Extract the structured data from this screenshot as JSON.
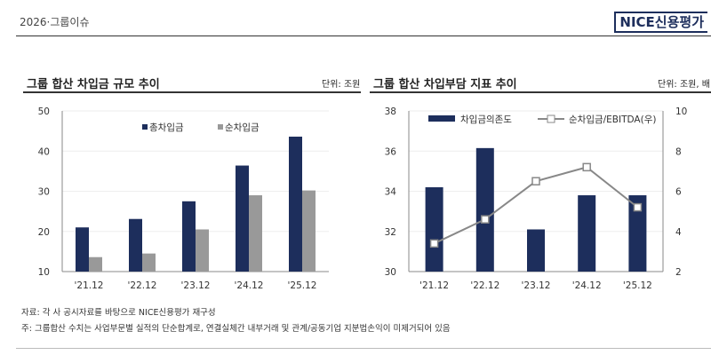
{
  "header": {
    "section": "2026·그룹이슈",
    "logo": "NICE신용평가"
  },
  "chart_data": [
    {
      "type": "bar",
      "title": "그룹 합산 차입금 규모 추이",
      "unit": "단위: 조원",
      "categories": [
        "'21.12",
        "'22.12",
        "'23.12",
        "'24.12",
        "'25.12"
      ],
      "series": [
        {
          "name": "총차입금",
          "color": "#1d2e5c",
          "values": [
            21.0,
            23.1,
            27.5,
            36.4,
            43.6
          ]
        },
        {
          "name": "순차입금",
          "color": "#999999",
          "values": [
            13.6,
            14.5,
            20.5,
            29.0,
            30.2
          ]
        }
      ],
      "ylim": [
        10,
        50
      ],
      "yticks": [
        10,
        20,
        30,
        40,
        50
      ],
      "legend": "top"
    },
    {
      "type": "bar+line",
      "title": "그룹 합산 차입부담 지표 추이",
      "unit": "단위: 조원, 배",
      "categories": [
        "'21.12",
        "'22.12",
        "'23.12",
        "'24.12",
        "'25.12"
      ],
      "series": [
        {
          "name": "차입금의존도",
          "color": "#1d2e5c",
          "axis": "left",
          "values": [
            34.2,
            36.15,
            32.1,
            33.8,
            33.8
          ]
        },
        {
          "name": "순차입금/EBITDA(우)",
          "color": "#888888",
          "axis": "right",
          "values": [
            3.4,
            4.6,
            6.5,
            7.2,
            5.2
          ]
        }
      ],
      "ylim": [
        30,
        38
      ],
      "yticks": [
        30,
        32,
        34,
        36,
        38
      ],
      "y2lim": [
        2,
        10
      ],
      "y2ticks": [
        2,
        4,
        6,
        8,
        10
      ],
      "legend": "top"
    }
  ],
  "notes": [
    "자료: 각 사 공시자료를 바탕으로 NICE신용평가 재구성",
    "주: 그룹합산 수치는 사업부문별 실적의 단순합계로, 연결실체간 내부거래 및 관계/공동기업 지분법손익이 미제거되어 있음"
  ]
}
